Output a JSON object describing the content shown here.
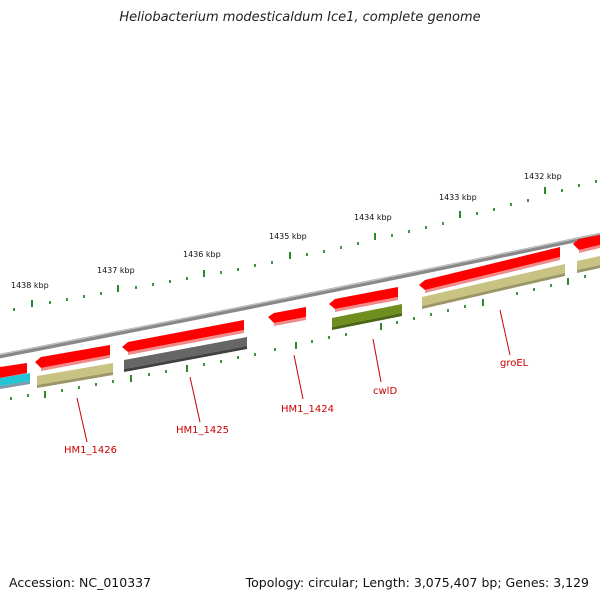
{
  "map": {
    "title": "Heliobacterium modesticaldum Ice1, complete genome",
    "accession": "Accession: NC_010337",
    "summary": "Topology: circular; Length: 3,075,407 bp; Genes: 3,129"
  },
  "colors": {
    "background": "#ffffff",
    "backbone": "#888888",
    "forward_strand_cds": "#ff0000",
    "hypothetical_cds": "#c8c383",
    "unknown_function_cds": "#666666",
    "cell_wall_cds": "#6e8e1f",
    "other_cds": "#22c4d6",
    "tick": "#127a12",
    "gene_label": "#cc0000"
  },
  "scale": {
    "kbp_labels": [
      "1438 kbp",
      "1437 kbp",
      "1436 kbp",
      "1435 kbp",
      "1434 kbp",
      "1433 kbp",
      "1432 kbp"
    ]
  },
  "genes": [
    {
      "id": "HM1_1426",
      "label": "HM1_1426"
    },
    {
      "id": "HM1_1425",
      "label": "HM1_1425"
    },
    {
      "id": "HM1_1424",
      "label": "HM1_1424"
    },
    {
      "id": "cwlD",
      "label": "cwlD"
    },
    {
      "id": "groEL",
      "label": "groEL"
    }
  ]
}
